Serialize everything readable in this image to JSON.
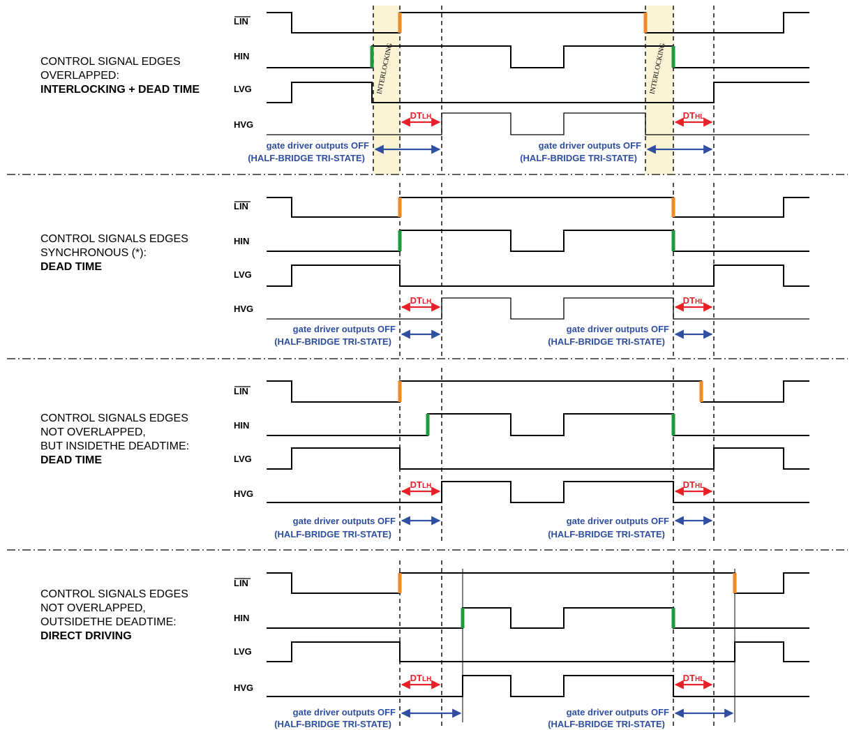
{
  "signal_labels": {
    "lin": "LIN",
    "hin": "HIN",
    "lvg": "LVG",
    "hvg": "HVG"
  },
  "sections": [
    {
      "description": [
        "CONTROL SIGNAL EDGES",
        "OVERLAPPED:"
      ],
      "mode": "INTERLOCKING + DEAD TIME",
      "interlocking_label": "INTERLOCKING",
      "dt_rise": "DT",
      "dt_rise_sub": "LH",
      "dt_fall": "DT",
      "dt_fall_sub": "HL",
      "gate_off_line1": "gate driver outputs OFF",
      "gate_off_line2": "(HALF-BRIDGE TRI-STATE)"
    },
    {
      "description": [
        "CONTROL SIGNALS EDGES",
        "SYNCHRONOUS (*):"
      ],
      "mode": "DEAD TIME",
      "dt_rise": "DT",
      "dt_rise_sub": "LH",
      "dt_fall": "DT",
      "dt_fall_sub": "HL",
      "gate_off_line1": "gate driver outputs OFF",
      "gate_off_line2": "(HALF-BRIDGE TRI-STATE)"
    },
    {
      "description": [
        "CONTROL SIGNALS EDGES",
        "NOT OVERLAPPED,",
        "BUT INSIDETHE DEADTIME:"
      ],
      "mode": "DEAD TIME",
      "dt_rise": "DT",
      "dt_rise_sub": "LH",
      "dt_fall": "DT",
      "dt_fall_sub": "HL",
      "gate_off_line1": "gate driver outputs OFF",
      "gate_off_line2": "(HALF-BRIDGE TRI-STATE)"
    },
    {
      "description": [
        "CONTROL SIGNALS EDGES",
        "NOT OVERLAPPED,",
        "OUTSIDETHE DEADTIME:"
      ],
      "mode": "DIRECT DRIVING",
      "dt_rise": "DT",
      "dt_rise_sub": "LH",
      "dt_fall": "DT",
      "dt_fall_sub": "HL",
      "gate_off_line1": "gate driver outputs OFF",
      "gate_off_line2": "(HALF-BRIDGE TRI-STATE)"
    }
  ],
  "colors": {
    "lin_edge_marker": "#f08a24",
    "hin_edge_marker": "#1e9a3c",
    "dead_time_arrow": "#e8202a",
    "gate_off_arrow": "#2f4ea0",
    "interlocking_band": "#fbf3d4",
    "separator": "#000000"
  }
}
